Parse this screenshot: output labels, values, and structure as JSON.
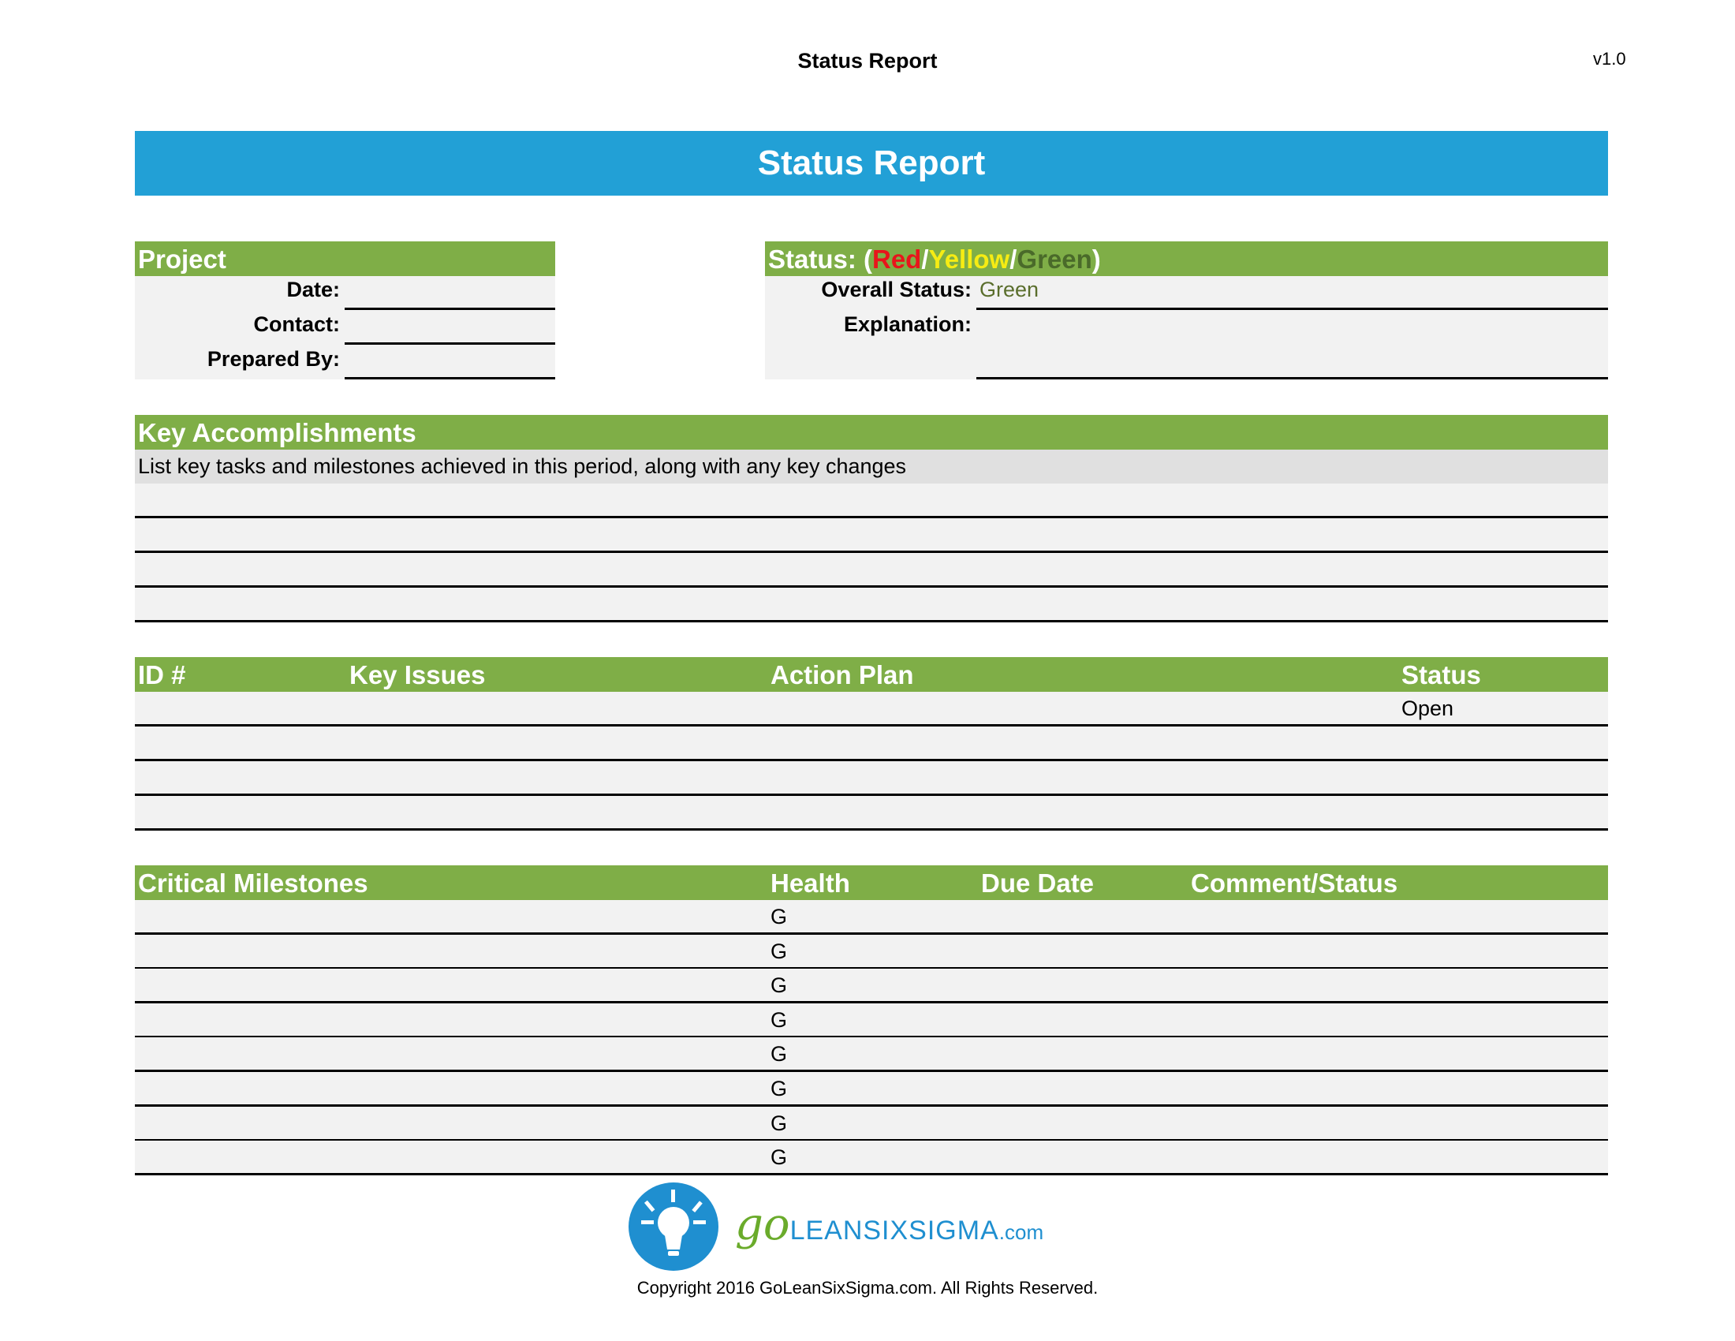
{
  "header": {
    "title": "Status Report",
    "version": "v1.0"
  },
  "banner": {
    "title": "Status Report"
  },
  "project": {
    "heading": "Project",
    "fields": [
      {
        "label": "Date:",
        "value": ""
      },
      {
        "label": "Contact:",
        "value": ""
      },
      {
        "label": "Prepared By:",
        "value": ""
      }
    ]
  },
  "status": {
    "heading_prefix": "Status: (",
    "red": "Red",
    "sep1": "/",
    "yellow": "Yellow",
    "sep2": "/",
    "green": "Green",
    "heading_suffix": ")",
    "overall_label": "Overall Status:",
    "overall_value": "Green",
    "explanation_label": "Explanation:",
    "explanation_value": "",
    "colors": {
      "red": "#e8151b",
      "yellow": "#f6ec13",
      "green": "#4a6a2a",
      "value": "#5a6e2c"
    }
  },
  "accomplishments": {
    "heading": "Key Accomplishments",
    "description": "List key tasks and milestones achieved in this period, along with any key changes",
    "rows": [
      "",
      "",
      "",
      ""
    ]
  },
  "issues": {
    "columns": [
      "ID #",
      "Key Issues",
      "Action Plan",
      "Status"
    ],
    "rows": [
      {
        "id": "",
        "issue": "",
        "plan": "",
        "status": "Open"
      },
      {
        "id": "",
        "issue": "",
        "plan": "",
        "status": ""
      },
      {
        "id": "",
        "issue": "",
        "plan": "",
        "status": ""
      },
      {
        "id": "",
        "issue": "",
        "plan": "",
        "status": ""
      }
    ]
  },
  "milestones": {
    "columns": [
      "Critical Milestones",
      "Health",
      "Due Date",
      "Comment/Status"
    ],
    "rows": [
      {
        "name": "",
        "health": "G",
        "due": "",
        "comment": ""
      },
      {
        "name": "",
        "health": "G",
        "due": "",
        "comment": ""
      },
      {
        "name": "",
        "health": "G",
        "due": "",
        "comment": ""
      },
      {
        "name": "",
        "health": "G",
        "due": "",
        "comment": ""
      },
      {
        "name": "",
        "health": "G",
        "due": "",
        "comment": ""
      },
      {
        "name": "",
        "health": "G",
        "due": "",
        "comment": ""
      },
      {
        "name": "",
        "health": "G",
        "due": "",
        "comment": ""
      },
      {
        "name": "",
        "health": "G",
        "due": "",
        "comment": ""
      }
    ]
  },
  "footer": {
    "logo_go": "go",
    "logo_text": "LEANSIXSIGMA",
    "logo_com": ".com",
    "copyright": "Copyright 2016 GoLeanSixSigma.com. All Rights Reserved.",
    "colors": {
      "brand_blue": "#1f8fd0",
      "brand_green": "#6aab2b"
    },
    "icon": "lightbulb-icon"
  },
  "theme": {
    "banner": "#22a0d6",
    "section_header": "#7fae47",
    "row_bg": "#f2f2f2"
  }
}
